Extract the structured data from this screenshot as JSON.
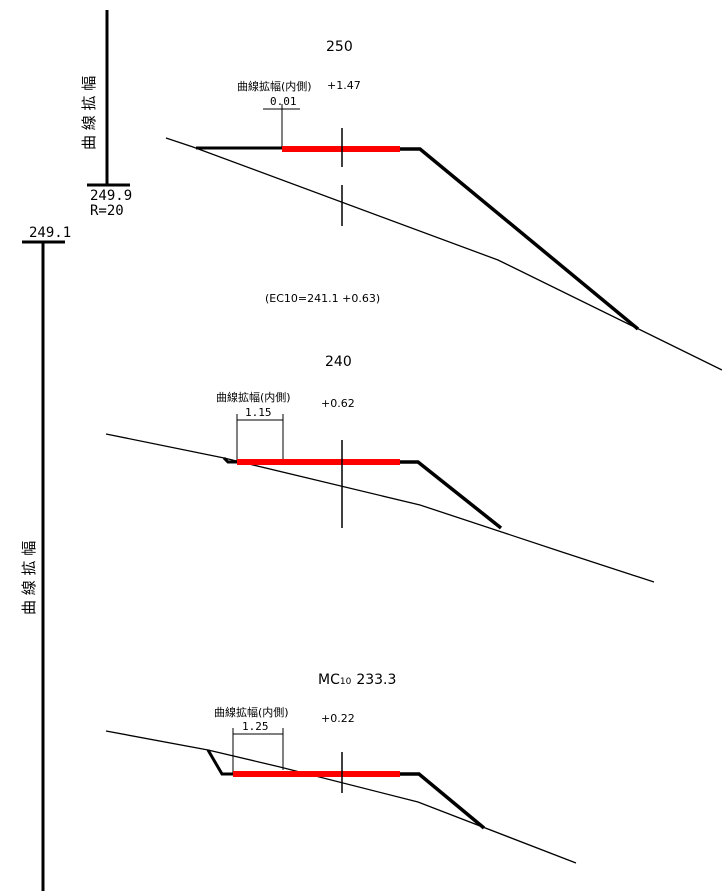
{
  "colors": {
    "ink": "#000000",
    "road": "#ff0000"
  },
  "top_scale": {
    "label": "曲 線 拡 幅",
    "value": "249.9",
    "radius": "R=20"
  },
  "left_scale": {
    "label": "曲 線 拡 幅",
    "value": "249.1"
  },
  "section_250": {
    "station": "250",
    "widening_label": "曲線拡幅(内側)",
    "widening_value": "0.01",
    "elevation": "+1.47"
  },
  "ec_note": "(EC10=241.1 +0.63)",
  "section_240": {
    "station": "240",
    "widening_label": "曲線拡幅(内側)",
    "widening_value": "1.15",
    "elevation": "+0.62"
  },
  "section_mc": {
    "station_prefix": "MC",
    "station_sub": "10",
    "station_value": "233.3",
    "widening_label": "曲線拡幅(内側)",
    "widening_value": "1.25",
    "elevation": "+0.22"
  }
}
